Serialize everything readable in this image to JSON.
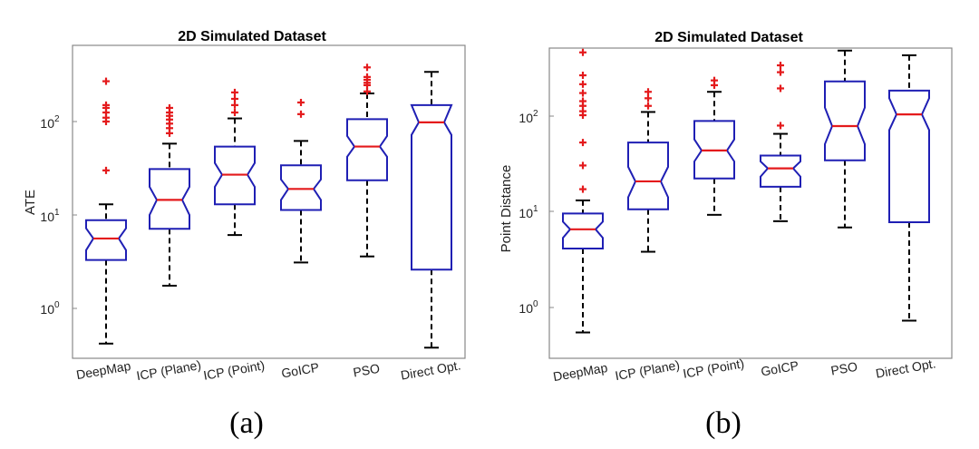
{
  "chart_data": [
    {
      "type": "boxplot",
      "title": "2D Simulated Dataset",
      "caption": "(a)",
      "ylabel": "ATE",
      "yscale": "log",
      "ylim": [
        0.3,
        500
      ],
      "yticks": [
        {
          "value": 1,
          "base": "10",
          "exp": "0"
        },
        {
          "value": 10,
          "base": "10",
          "exp": "1"
        },
        {
          "value": 100,
          "base": "10",
          "exp": "2"
        }
      ],
      "categories": [
        "DeepMap",
        "ICP (Plane)",
        "ICP (Point)",
        "GoICP",
        "PSO",
        "Direct Opt."
      ],
      "boxes": [
        {
          "name": "DeepMap",
          "whisker_low": 0.42,
          "q1": 3.3,
          "median": 5.6,
          "q3": 8.8,
          "whisker_high": 13,
          "notch_low": 4.2,
          "notch_high": 7.2,
          "outliers": [
            30,
            100,
            110,
            125,
            140,
            150,
            270
          ]
        },
        {
          "name": "ICP (Plane)",
          "whisker_low": 1.75,
          "q1": 7.1,
          "median": 14.5,
          "q3": 31,
          "whisker_high": 58,
          "notch_low": 10,
          "notch_high": 20,
          "outliers": [
            75,
            85,
            95,
            105,
            115,
            125,
            140
          ]
        },
        {
          "name": "ICP (Point)",
          "whisker_low": 6.1,
          "q1": 13,
          "median": 27,
          "q3": 54,
          "whisker_high": 108,
          "notch_low": 20,
          "notch_high": 36,
          "outliers": [
            125,
            150,
            175,
            205
          ]
        },
        {
          "name": "GoICP",
          "whisker_low": 3.1,
          "q1": 11.3,
          "median": 19,
          "q3": 34,
          "whisker_high": 62,
          "notch_low": 14.5,
          "notch_high": 24,
          "outliers": [
            120,
            160
          ]
        },
        {
          "name": "PSO",
          "whisker_low": 3.6,
          "q1": 23.5,
          "median": 54,
          "q3": 106,
          "whisker_high": 200,
          "notch_low": 42,
          "notch_high": 70,
          "outliers": [
            210,
            245,
            260,
            280,
            300,
            380
          ]
        },
        {
          "name": "Direct Opt.",
          "whisker_low": 0.38,
          "q1": 2.6,
          "median": 98,
          "q3": 150,
          "whisker_high": 340,
          "notch_low": 72,
          "notch_high": 150,
          "outliers": []
        }
      ]
    },
    {
      "type": "boxplot",
      "title": "2D Simulated Dataset",
      "caption": "(b)",
      "ylabel": "Point Distance",
      "yscale": "log",
      "ylim": [
        0.3,
        500
      ],
      "yticks": [
        {
          "value": 1,
          "base": "10",
          "exp": "0"
        },
        {
          "value": 10,
          "base": "10",
          "exp": "1"
        },
        {
          "value": 100,
          "base": "10",
          "exp": "2"
        }
      ],
      "categories": [
        "DeepMap",
        "ICP (Plane)",
        "ICP (Point)",
        "GoICP",
        "PSO",
        "Direct Opt."
      ],
      "boxes": [
        {
          "name": "DeepMap",
          "whisker_low": 0.55,
          "q1": 4.1,
          "median": 6.5,
          "q3": 9.5,
          "whisker_high": 13,
          "notch_low": 5.3,
          "notch_high": 7.8,
          "outliers": [
            17,
            30,
            52,
            100,
            110,
            125,
            140,
            170,
            210,
            260,
            450
          ]
        },
        {
          "name": "ICP (Plane)",
          "whisker_low": 3.8,
          "q1": 10.5,
          "median": 20.5,
          "q3": 52,
          "whisker_high": 108,
          "notch_low": 14,
          "notch_high": 29,
          "outliers": [
            125,
            150,
            175
          ]
        },
        {
          "name": "ICP (Point)",
          "whisker_low": 9.2,
          "q1": 22,
          "median": 43,
          "q3": 87,
          "whisker_high": 175,
          "notch_low": 33,
          "notch_high": 56,
          "outliers": [
            205,
            230
          ]
        },
        {
          "name": "GoICP",
          "whisker_low": 7.9,
          "q1": 18,
          "median": 28,
          "q3": 38,
          "whisker_high": 64,
          "notch_low": 23,
          "notch_high": 33,
          "outliers": [
            78,
            190,
            280,
            330
          ]
        },
        {
          "name": "PSO",
          "whisker_low": 6.8,
          "q1": 34,
          "median": 77,
          "q3": 225,
          "whisker_high": 470,
          "notch_low": 50,
          "notch_high": 120,
          "outliers": []
        },
        {
          "name": "Direct Opt.",
          "whisker_low": 0.73,
          "q1": 7.7,
          "median": 102,
          "q3": 180,
          "whisker_high": 420,
          "notch_low": 70,
          "notch_high": 150,
          "outliers": []
        }
      ]
    }
  ],
  "colors": {
    "box": "#1f1fb4",
    "median": "#e41a1c",
    "whisker": "#000000",
    "outlier": "#e41a1c",
    "axis": "#888888"
  }
}
